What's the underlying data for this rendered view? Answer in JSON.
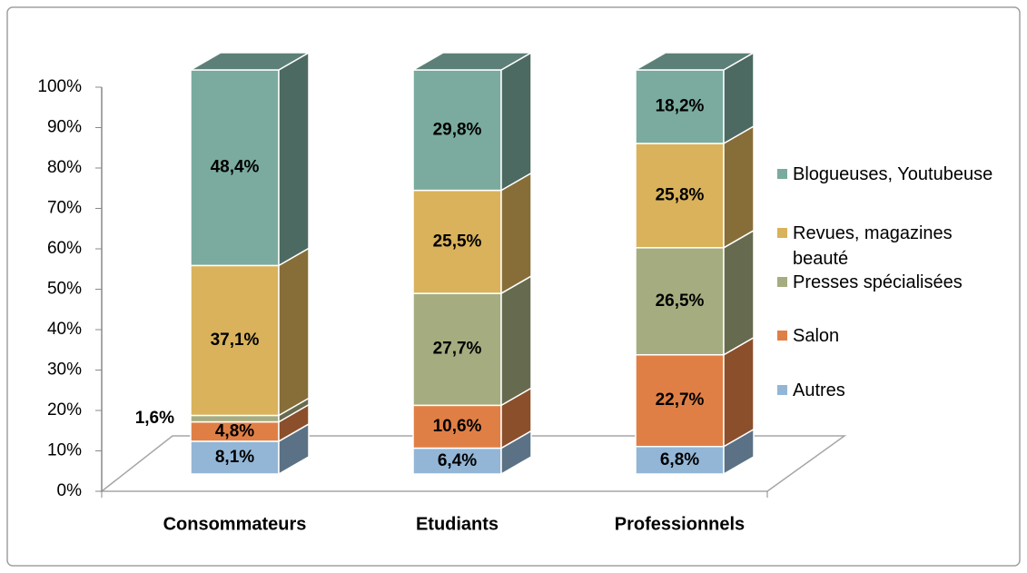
{
  "chart_data": {
    "type": "bar3d_stacked",
    "categories": [
      "Consommateurs",
      "Etudiants",
      "Professionnels"
    ],
    "ylim": [
      0,
      100
    ],
    "yticks": [
      {
        "value": 0,
        "label": "0%"
      },
      {
        "value": 10,
        "label": "10%"
      },
      {
        "value": 20,
        "label": "20%"
      },
      {
        "value": 30,
        "label": "30%"
      },
      {
        "value": 40,
        "label": "40%"
      },
      {
        "value": 50,
        "label": "50%"
      },
      {
        "value": 60,
        "label": "60%"
      },
      {
        "value": 70,
        "label": "70%"
      },
      {
        "value": 80,
        "label": "80%"
      },
      {
        "value": 90,
        "label": "90%"
      },
      {
        "value": 100,
        "label": "100%"
      }
    ],
    "legend": "right",
    "series": [
      {
        "name": "Autres",
        "color": "#93b6d6",
        "values": [
          8.1,
          6.4,
          6.8
        ],
        "value_labels": [
          "8,1%",
          "6,4%",
          "6,8%"
        ]
      },
      {
        "name": "Salon",
        "color": "#e07f45",
        "values": [
          4.8,
          10.6,
          22.7
        ],
        "value_labels": [
          "4,8%",
          "10,6%",
          "22,7%"
        ]
      },
      {
        "name": "Presses spécialisées",
        "color": "#a5ad80",
        "values": [
          1.6,
          27.7,
          26.5
        ],
        "value_labels": [
          "1,6%",
          "27,7%",
          "26,5%"
        ]
      },
      {
        "name": "Revues, magazines beauté",
        "color": "#d9b25b",
        "values": [
          37.1,
          25.5,
          25.8
        ],
        "value_labels": [
          "37,1%",
          "25,5%",
          "25,8%"
        ]
      },
      {
        "name": "Blogueuses, Youtubeuse",
        "color": "#7aab9e",
        "values": [
          48.4,
          29.8,
          18.2
        ],
        "value_labels": [
          "48,4%",
          "29,8%",
          "18,2%"
        ]
      }
    ]
  }
}
